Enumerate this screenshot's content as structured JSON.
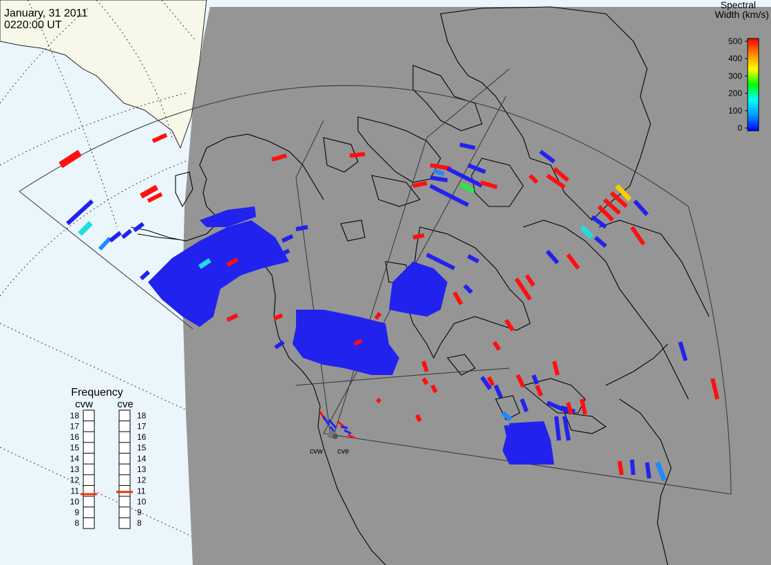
{
  "header": {
    "date": "January, 31 2011",
    "time": "0220:00 UT"
  },
  "colorbar": {
    "title_line1": "Spectral",
    "title_line2": "Width (km/s)",
    "ticks": [
      "500",
      "400",
      "300",
      "200",
      "100",
      "0"
    ],
    "range": [
      0,
      500
    ],
    "stops": [
      "#0000ff",
      "#0099ff",
      "#00ffff",
      "#00ff00",
      "#ffff00",
      "#ff8800",
      "#ff0000"
    ]
  },
  "frequency": {
    "title": "Frequency",
    "radars": [
      {
        "name": "cvw",
        "value": 10.7
      },
      {
        "name": "cve",
        "value": 10.9
      }
    ],
    "ticks": [
      "18",
      "17",
      "16",
      "15",
      "14",
      "13",
      "12",
      "11",
      "10",
      "9",
      "8"
    ],
    "range": [
      8,
      18
    ]
  },
  "radar_sites": [
    {
      "label": "cvw"
    },
    {
      "label": "cve"
    }
  ],
  "colors": {
    "night": "#959595",
    "ocean": "#eaf6fc",
    "land": "#f7f7ea",
    "low": "#2222ee",
    "high": "#ff1010",
    "frequency_marker": "#ee3300"
  }
}
